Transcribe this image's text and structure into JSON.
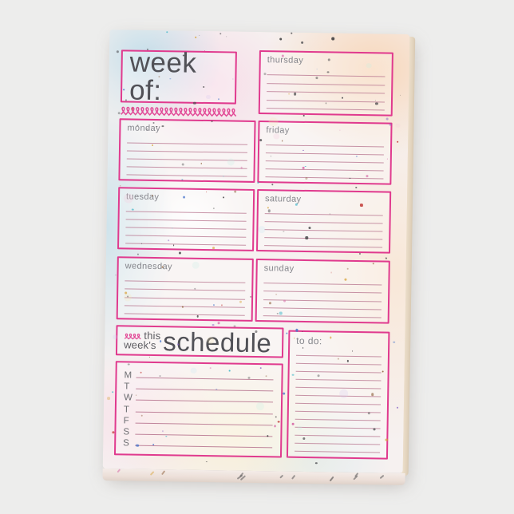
{
  "title_box": {
    "label": "week of:"
  },
  "days": {
    "monday": {
      "label": "monday",
      "lines": 5
    },
    "tuesday": {
      "label": "tuesday",
      "lines": 5
    },
    "wednesday": {
      "label": "wednesday",
      "lines": 5
    },
    "thursday": {
      "label": "thursday",
      "lines": 5
    },
    "friday": {
      "label": "friday",
      "lines": 5
    },
    "saturday": {
      "label": "saturday",
      "lines": 5
    },
    "sunday": {
      "label": "sunday",
      "lines": 5
    }
  },
  "schedule_header": {
    "line1": "this",
    "line2": "week's",
    "title": "schedule"
  },
  "schedule_grid": {
    "day_initials": [
      "M",
      "T",
      "W",
      "T",
      "F",
      "S",
      "S"
    ]
  },
  "todo_box": {
    "label": "to do:",
    "lines": 13
  },
  "colors": {
    "frame_pink": "#e03a8e",
    "rule_line": "#b5718c",
    "label_gray": "#85868c",
    "heading_gray": "#515157"
  }
}
